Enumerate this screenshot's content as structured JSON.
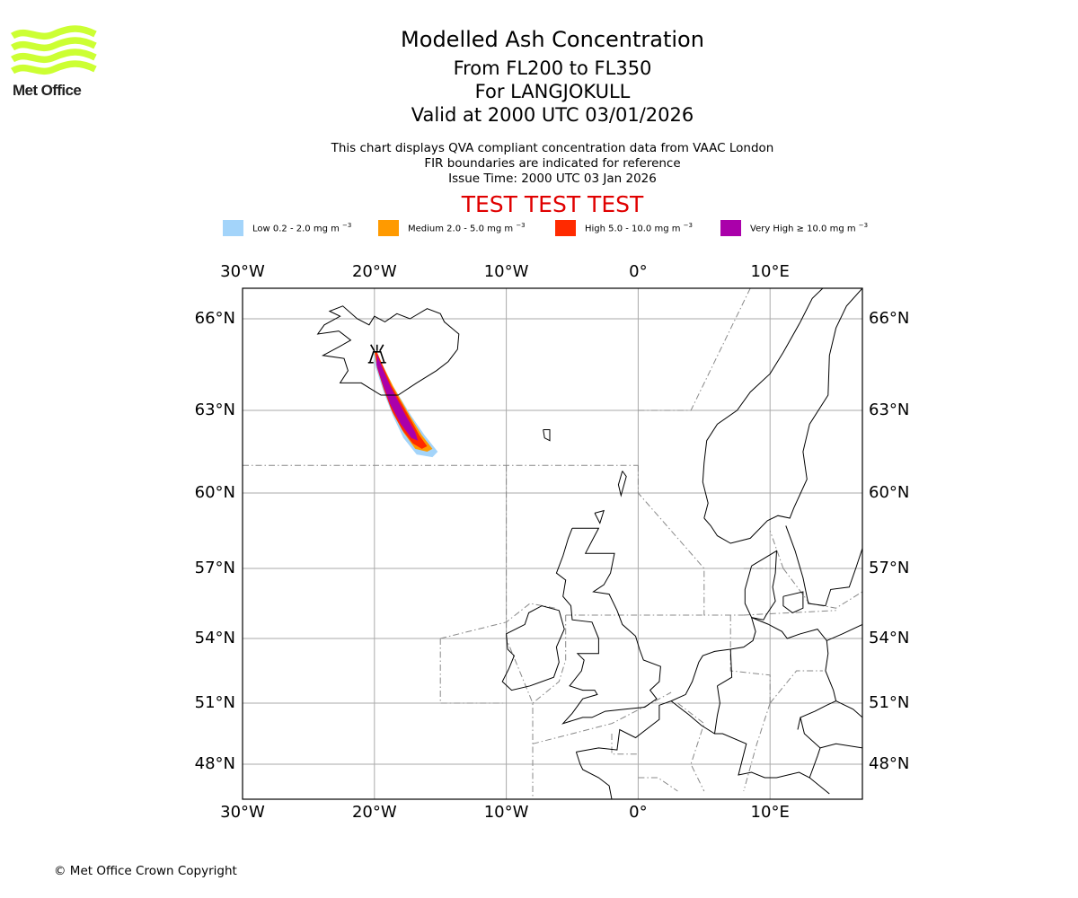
{
  "logo": {
    "text": "Met Office",
    "brand_color": "#ccff33"
  },
  "header": {
    "title": "Modelled Ash Concentration",
    "flight_levels": "From FL200 to FL350",
    "volcano": "For LANGJOKULL",
    "valid_time": "Valid at 2000 UTC 03/01/2026"
  },
  "subtitle": {
    "line1": "This chart displays QVA compliant concentration data from VAAC London",
    "line2": "FIR boundaries are indicated for reference",
    "line3": "Issue Time: 2000 UTC 03 Jan 2026"
  },
  "banner": {
    "text": "TEST TEST TEST",
    "color": "#e00000"
  },
  "legend": [
    {
      "name": "Low",
      "label": "Low 0.2 - 2.0 mg m",
      "exp": "−3",
      "color": "#a3d4fa"
    },
    {
      "name": "Medium",
      "label": "Medium 2.0 - 5.0 mg m",
      "exp": "−3",
      "color": "#ff9a00"
    },
    {
      "name": "High",
      "label": "High 5.0 - 10.0 mg m",
      "exp": "−3",
      "color": "#ff2a00"
    },
    {
      "name": "Very High",
      "label": "Very High  ≥  10.0 mg m",
      "exp": "−3",
      "color": "#aa00aa"
    }
  ],
  "map": {
    "lon_range": [
      -30,
      17
    ],
    "lat_range": [
      46.7,
      67.2
    ],
    "lon_ticks": [
      {
        "value": -30,
        "label": "30°W"
      },
      {
        "value": -20,
        "label": "20°W"
      },
      {
        "value": -10,
        "label": "10°W"
      },
      {
        "value": 0,
        "label": "0°"
      },
      {
        "value": 10,
        "label": "10°E"
      }
    ],
    "lat_ticks": [
      {
        "value": 66,
        "label": "66°N"
      },
      {
        "value": 63,
        "label": "63°N"
      },
      {
        "value": 60,
        "label": "60°N"
      },
      {
        "value": 57,
        "label": "57°N"
      },
      {
        "value": 54,
        "label": "54°N"
      },
      {
        "value": 51,
        "label": "51°N"
      },
      {
        "value": 48,
        "label": "48°N"
      }
    ],
    "volcano_symbol": "volcano-icon",
    "volcano_position": {
      "lon": -19.8,
      "lat": 64.8
    },
    "gridline_color": "#aaaaaa",
    "coastline_color": "#000000",
    "fir_color": "#888888"
  },
  "footer": {
    "copyright": "© Met Office Crown Copyright"
  }
}
